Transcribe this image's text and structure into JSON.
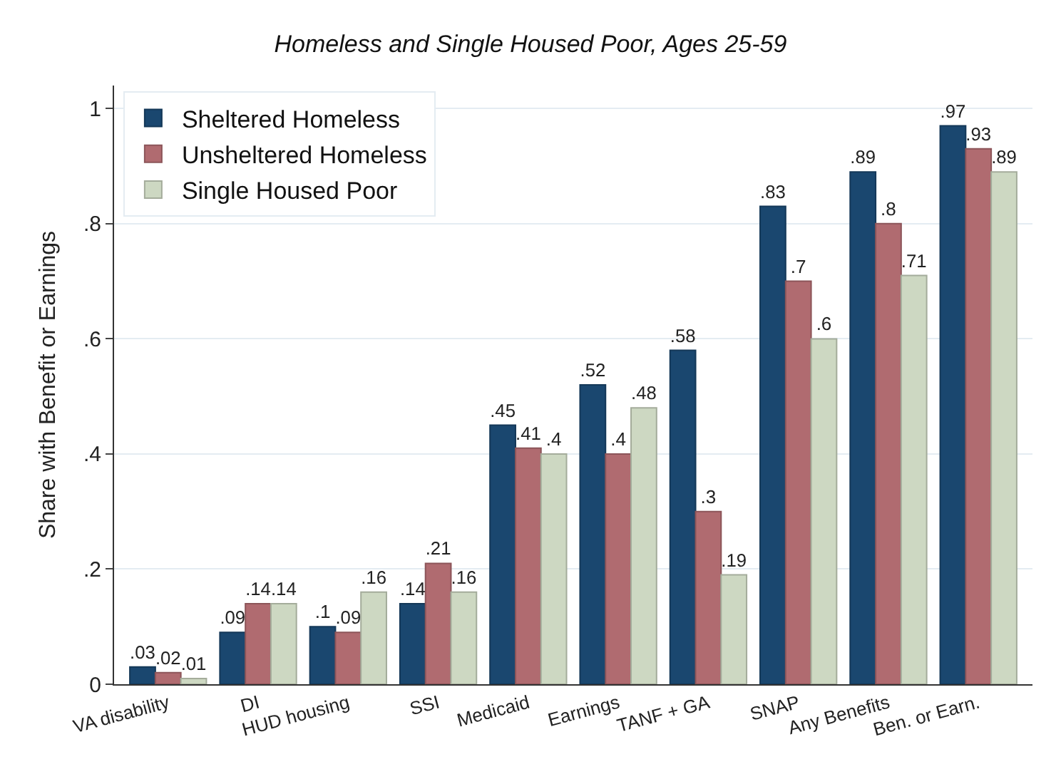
{
  "chart_data": {
    "type": "bar",
    "title": "Homeless and Single Housed Poor, Ages 25-59",
    "ylabel": "Share with Benefit or Earnings",
    "categories": [
      "VA disability",
      "DI",
      "HUD housing",
      "SSI",
      "Medicaid",
      "Earnings",
      "TANF + GA",
      "SNAP",
      "Any Benefits",
      "Ben. or Earn."
    ],
    "series": [
      {
        "name": "Sheltered Homeless",
        "color": "#1a476f",
        "values": [
          0.03,
          0.09,
          0.1,
          0.14,
          0.45,
          0.52,
          0.58,
          0.83,
          0.89,
          0.97
        ],
        "value_labels": [
          ".03",
          ".09",
          ".1",
          ".14",
          ".45",
          ".52",
          ".58",
          ".83",
          ".89",
          ".97"
        ]
      },
      {
        "name": "Unsheltered Homeless",
        "color": "#b06b70",
        "values": [
          0.02,
          0.14,
          0.09,
          0.21,
          0.41,
          0.4,
          0.3,
          0.7,
          0.8,
          0.93
        ],
        "value_labels": [
          ".02",
          ".14",
          ".09",
          ".21",
          ".41",
          ".4",
          ".3",
          ".7",
          ".8",
          ".93"
        ]
      },
      {
        "name": "Single Housed Poor",
        "color": "#cdd8c2",
        "values": [
          0.01,
          0.14,
          0.16,
          0.16,
          0.4,
          0.48,
          0.19,
          0.6,
          0.71,
          0.89
        ],
        "value_labels": [
          ".01",
          ".14",
          ".16",
          ".16",
          ".4",
          ".48",
          ".19",
          ".6",
          ".71",
          ".89"
        ]
      }
    ],
    "ylim": [
      0,
      1.04
    ],
    "yticks": [
      0,
      {
        "value": 0.2,
        "label": ".2"
      },
      {
        "value": 0.4,
        "label": ".4"
      },
      {
        "value": 0.6,
        "label": ".6"
      },
      {
        "value": 0.8,
        "label": ".8"
      },
      1
    ],
    "grid": "y",
    "legend": "top left"
  }
}
